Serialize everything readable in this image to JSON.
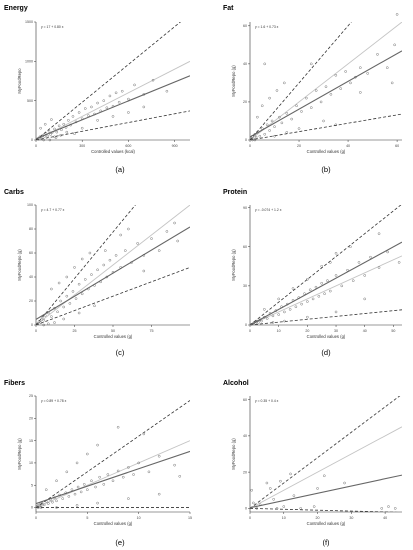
{
  "chart_data": [
    {
      "type": "scatter",
      "title": "Energy",
      "equation": "y = 17 + 0.80 x",
      "xlabel": "Controlled values (kcal)",
      "ylabel": "MyFoodRepo",
      "xlim": [
        0,
        1000
      ],
      "ylim": [
        0,
        1500
      ],
      "xticks": [
        0,
        300,
        600,
        900
      ],
      "yticks": [
        0,
        500,
        1000,
        1500
      ],
      "regression": {
        "intercept": 17,
        "slope": 0.8
      },
      "identity": true,
      "limits": {
        "upper_slope": 1.6,
        "lower_slope": 0.37
      },
      "points": [
        [
          15,
          10
        ],
        [
          25,
          40
        ],
        [
          35,
          20
        ],
        [
          45,
          60
        ],
        [
          55,
          45
        ],
        [
          65,
          80
        ],
        [
          75,
          50
        ],
        [
          85,
          110
        ],
        [
          95,
          70
        ],
        [
          105,
          95
        ],
        [
          120,
          140
        ],
        [
          135,
          100
        ],
        [
          150,
          180
        ],
        [
          165,
          130
        ],
        [
          180,
          200
        ],
        [
          195,
          160
        ],
        [
          210,
          250
        ],
        [
          225,
          190
        ],
        [
          240,
          300
        ],
        [
          260,
          230
        ],
        [
          280,
          350
        ],
        [
          300,
          270
        ],
        [
          320,
          400
        ],
        [
          340,
          310
        ],
        [
          360,
          420
        ],
        [
          380,
          330
        ],
        [
          400,
          470
        ],
        [
          420,
          370
        ],
        [
          440,
          500
        ],
        [
          460,
          410
        ],
        [
          480,
          560
        ],
        [
          500,
          430
        ],
        [
          520,
          600
        ],
        [
          540,
          480
        ],
        [
          560,
          620
        ],
        [
          600,
          520
        ],
        [
          640,
          700
        ],
        [
          700,
          580
        ],
        [
          760,
          760
        ],
        [
          850,
          620
        ],
        [
          30,
          150
        ],
        [
          60,
          200
        ],
        [
          100,
          260
        ],
        [
          200,
          100
        ],
        [
          300,
          150
        ],
        [
          400,
          250
        ],
        [
          500,
          300
        ],
        [
          120,
          40
        ],
        [
          250,
          80
        ],
        [
          90,
          0
        ],
        [
          50,
          0
        ],
        [
          130,
          30
        ],
        [
          600,
          350
        ],
        [
          700,
          420
        ],
        [
          160,
          60
        ]
      ],
      "letter": "(a)"
    },
    {
      "type": "scatter",
      "title": "Fat",
      "equation": "y = 1.6 + 0.73 x",
      "xlabel": "Controlled values (g)",
      "ylabel": "MyFoodRepo (g)",
      "xlim": [
        0,
        62
      ],
      "ylim": [
        0,
        62
      ],
      "xticks": [
        0,
        20,
        40,
        60
      ],
      "yticks": [
        0,
        20,
        40,
        60
      ],
      "regression": {
        "intercept": 1.6,
        "slope": 0.73
      },
      "identity": true,
      "limits": {
        "upper_slope": 1.5,
        "lower_slope": 0.22
      },
      "points": [
        [
          0.5,
          1
        ],
        [
          1,
          2
        ],
        [
          1.5,
          0.5
        ],
        [
          2,
          3
        ],
        [
          2.5,
          1.5
        ],
        [
          3,
          4
        ],
        [
          4,
          2
        ],
        [
          5,
          6
        ],
        [
          6,
          3
        ],
        [
          7,
          8
        ],
        [
          8,
          5
        ],
        [
          9,
          10
        ],
        [
          10,
          7
        ],
        [
          12,
          12
        ],
        [
          13,
          9
        ],
        [
          15,
          14
        ],
        [
          17,
          11
        ],
        [
          19,
          18
        ],
        [
          21,
          15
        ],
        [
          23,
          22
        ],
        [
          25,
          17
        ],
        [
          27,
          26
        ],
        [
          29,
          20
        ],
        [
          31,
          28
        ],
        [
          33,
          24
        ],
        [
          35,
          34
        ],
        [
          37,
          27
        ],
        [
          39,
          36
        ],
        [
          41,
          30
        ],
        [
          43,
          33
        ],
        [
          45,
          38
        ],
        [
          48,
          35
        ],
        [
          52,
          45
        ],
        [
          56,
          38
        ],
        [
          59,
          50
        ],
        [
          3,
          12
        ],
        [
          5,
          18
        ],
        [
          8,
          22
        ],
        [
          11,
          26
        ],
        [
          14,
          30
        ],
        [
          6,
          40
        ],
        [
          10,
          2
        ],
        [
          15,
          4
        ],
        [
          20,
          6
        ],
        [
          30,
          10
        ],
        [
          25,
          40
        ],
        [
          35,
          8
        ],
        [
          45,
          25
        ],
        [
          60,
          66
        ],
        [
          58,
          30
        ],
        [
          1,
          0
        ],
        [
          2,
          0
        ]
      ],
      "letter": "(b)"
    },
    {
      "type": "scatter",
      "title": "Carbs",
      "equation": "y = 4.7 + 0.77 x",
      "xlabel": "Controlled values (g)",
      "ylabel": "MyFoodRepo (g)",
      "xlim": [
        0,
        100
      ],
      "ylim": [
        0,
        100
      ],
      "xticks": [
        0,
        25,
        50,
        75
      ],
      "yticks": [
        0,
        20,
        40,
        60,
        80,
        100
      ],
      "regression": {
        "intercept": 4.7,
        "slope": 0.77
      },
      "identity": true,
      "limits": {
        "upper_slope": 1.55,
        "lower_slope": 0.48
      },
      "points": [
        [
          1,
          1
        ],
        [
          2,
          3
        ],
        [
          3,
          2
        ],
        [
          4,
          6
        ],
        [
          5,
          4
        ],
        [
          6,
          8
        ],
        [
          8,
          10
        ],
        [
          10,
          7
        ],
        [
          12,
          14
        ],
        [
          14,
          11
        ],
        [
          16,
          20
        ],
        [
          18,
          15
        ],
        [
          20,
          24
        ],
        [
          22,
          18
        ],
        [
          24,
          28
        ],
        [
          26,
          22
        ],
        [
          28,
          34
        ],
        [
          30,
          26
        ],
        [
          32,
          38
        ],
        [
          34,
          30
        ],
        [
          36,
          42
        ],
        [
          38,
          33
        ],
        [
          40,
          46
        ],
        [
          42,
          36
        ],
        [
          44,
          50
        ],
        [
          46,
          40
        ],
        [
          48,
          54
        ],
        [
          50,
          44
        ],
        [
          52,
          58
        ],
        [
          55,
          48
        ],
        [
          58,
          62
        ],
        [
          62,
          52
        ],
        [
          66,
          68
        ],
        [
          70,
          58
        ],
        [
          75,
          72
        ],
        [
          80,
          62
        ],
        [
          85,
          78
        ],
        [
          92,
          70
        ],
        [
          10,
          30
        ],
        [
          15,
          35
        ],
        [
          20,
          40
        ],
        [
          25,
          48
        ],
        [
          30,
          55
        ],
        [
          35,
          60
        ],
        [
          12,
          2
        ],
        [
          18,
          5
        ],
        [
          28,
          10
        ],
        [
          38,
          16
        ],
        [
          45,
          62
        ],
        [
          55,
          75
        ],
        [
          60,
          80
        ],
        [
          70,
          45
        ],
        [
          90,
          85
        ],
        [
          5,
          0
        ],
        [
          8,
          1
        ]
      ],
      "letter": "(c)"
    },
    {
      "type": "scatter",
      "title": "Protein",
      "equation": "y = -0.074 + 1.2 x",
      "xlabel": "Controlled values (g)",
      "ylabel": "MyFoodRepo (g)",
      "xlim": [
        0,
        53
      ],
      "ylim": [
        0,
        92
      ],
      "xticks": [
        0,
        10,
        20,
        30,
        40,
        50
      ],
      "yticks": [
        0,
        30,
        60,
        90
      ],
      "regression": {
        "intercept": -0.074,
        "slope": 1.2
      },
      "identity": true,
      "limits": {
        "upper_slope": 1.75,
        "lower_slope": 0.22
      },
      "points": [
        [
          0.5,
          0.5
        ],
        [
          1,
          1
        ],
        [
          1.5,
          2
        ],
        [
          2,
          1
        ],
        [
          2.5,
          3
        ],
        [
          3,
          2
        ],
        [
          3.5,
          4
        ],
        [
          4,
          3
        ],
        [
          5,
          6
        ],
        [
          6,
          5
        ],
        [
          7,
          9
        ],
        [
          8,
          7
        ],
        [
          9,
          11
        ],
        [
          10,
          8
        ],
        [
          11,
          14
        ],
        [
          12,
          10
        ],
        [
          13,
          16
        ],
        [
          14,
          12
        ],
        [
          15,
          19
        ],
        [
          16,
          14
        ],
        [
          17,
          21
        ],
        [
          18,
          16
        ],
        [
          19,
          24
        ],
        [
          20,
          18
        ],
        [
          21,
          27
        ],
        [
          22,
          20
        ],
        [
          23,
          29
        ],
        [
          24,
          22
        ],
        [
          25,
          32
        ],
        [
          26,
          24
        ],
        [
          27,
          34
        ],
        [
          28,
          26
        ],
        [
          30,
          38
        ],
        [
          32,
          30
        ],
        [
          34,
          42
        ],
        [
          36,
          34
        ],
        [
          38,
          48
        ],
        [
          40,
          38
        ],
        [
          42,
          52
        ],
        [
          45,
          44
        ],
        [
          48,
          56
        ],
        [
          52,
          48
        ],
        [
          10,
          20
        ],
        [
          15,
          28
        ],
        [
          20,
          35
        ],
        [
          25,
          45
        ],
        [
          30,
          55
        ],
        [
          35,
          60
        ],
        [
          8,
          2
        ],
        [
          12,
          3
        ],
        [
          20,
          6
        ],
        [
          30,
          10
        ],
        [
          40,
          20
        ],
        [
          45,
          70
        ],
        [
          5,
          12
        ],
        [
          28,
          48
        ]
      ],
      "letter": "(d)"
    },
    {
      "type": "scatter",
      "title": "Fibers",
      "equation": "y = 0.89 + 0.78 x",
      "xlabel": "Controlled values (g)",
      "ylabel": "MyFoodRepo (g)",
      "xlim": [
        0,
        15
      ],
      "ylim": [
        -1,
        25
      ],
      "xticks": [
        0,
        5,
        10,
        15
      ],
      "yticks": [
        0,
        5,
        10,
        15,
        20,
        25
      ],
      "regression": {
        "intercept": 0.89,
        "slope": 0.78
      },
      "identity": true,
      "limits": {
        "upper_slope": 1.6,
        "lower_slope": 0
      },
      "points": [
        [
          0.1,
          0.2
        ],
        [
          0.2,
          0.5
        ],
        [
          0.3,
          0.1
        ],
        [
          0.4,
          0.8
        ],
        [
          0.5,
          0.4
        ],
        [
          0.6,
          1.0
        ],
        [
          0.8,
          0.6
        ],
        [
          1.0,
          1.4
        ],
        [
          1.2,
          0.9
        ],
        [
          1.4,
          1.8
        ],
        [
          1.6,
          1.2
        ],
        [
          1.8,
          2.2
        ],
        [
          2.0,
          1.5
        ],
        [
          2.3,
          2.8
        ],
        [
          2.6,
          2.0
        ],
        [
          2.9,
          3.3
        ],
        [
          3.2,
          2.5
        ],
        [
          3.5,
          4.0
        ],
        [
          3.8,
          3.0
        ],
        [
          4.1,
          4.6
        ],
        [
          4.4,
          3.5
        ],
        [
          4.7,
          5.2
        ],
        [
          5.0,
          4.0
        ],
        [
          5.4,
          6.0
        ],
        [
          5.8,
          4.6
        ],
        [
          6.2,
          6.8
        ],
        [
          6.6,
          5.2
        ],
        [
          7.0,
          7.4
        ],
        [
          7.5,
          6.0
        ],
        [
          8.0,
          8.2
        ],
        [
          8.5,
          6.8
        ],
        [
          9.0,
          9.0
        ],
        [
          9.5,
          7.4
        ],
        [
          10.0,
          10.0
        ],
        [
          11.0,
          8.0
        ],
        [
          12.0,
          11.5
        ],
        [
          13.5,
          9.5
        ],
        [
          1.0,
          4.0
        ],
        [
          2.0,
          6.0
        ],
        [
          3.0,
          8.0
        ],
        [
          4.0,
          10.0
        ],
        [
          5.0,
          12.0
        ],
        [
          6.0,
          14.0
        ],
        [
          8.0,
          18.0
        ],
        [
          2.0,
          0.0
        ],
        [
          4.0,
          0.5
        ],
        [
          6.0,
          1.0
        ],
        [
          9.0,
          2.0
        ],
        [
          12.0,
          3.0
        ],
        [
          14.0,
          7.0
        ],
        [
          10.5,
          16.5
        ],
        [
          0.2,
          0.0
        ],
        [
          0.5,
          0.0
        ]
      ],
      "letter": "(e)"
    },
    {
      "type": "scatter",
      "title": "Alcohol",
      "equation": "y = 0.35 + 0.4 x",
      "xlabel": "Controlled values (g)",
      "ylabel": "MyFoodRepo (g)",
      "xlim": [
        0,
        45
      ],
      "ylim": [
        -2,
        62
      ],
      "xticks": [
        0,
        10,
        20,
        30,
        40
      ],
      "yticks": [
        0,
        20,
        40,
        60
      ],
      "regression": {
        "intercept": 0.35,
        "slope": 0.4
      },
      "identity": true,
      "limits": {
        "upper_slope": 1.4,
        "lower_slope": -0.05
      },
      "points": [
        [
          0.5,
          10
        ],
        [
          1,
          3
        ],
        [
          3,
          2
        ],
        [
          5,
          14
        ],
        [
          6,
          11
        ],
        [
          7,
          5
        ],
        [
          9,
          15
        ],
        [
          10,
          1
        ],
        [
          12,
          19
        ],
        [
          13,
          7
        ],
        [
          15,
          0
        ],
        [
          19,
          1
        ],
        [
          20,
          11
        ],
        [
          22,
          18
        ],
        [
          28,
          14
        ],
        [
          39,
          0
        ],
        [
          41,
          1
        ],
        [
          43,
          0
        ],
        [
          2,
          0
        ],
        [
          8,
          0
        ]
      ],
      "letter": "(f)"
    }
  ]
}
